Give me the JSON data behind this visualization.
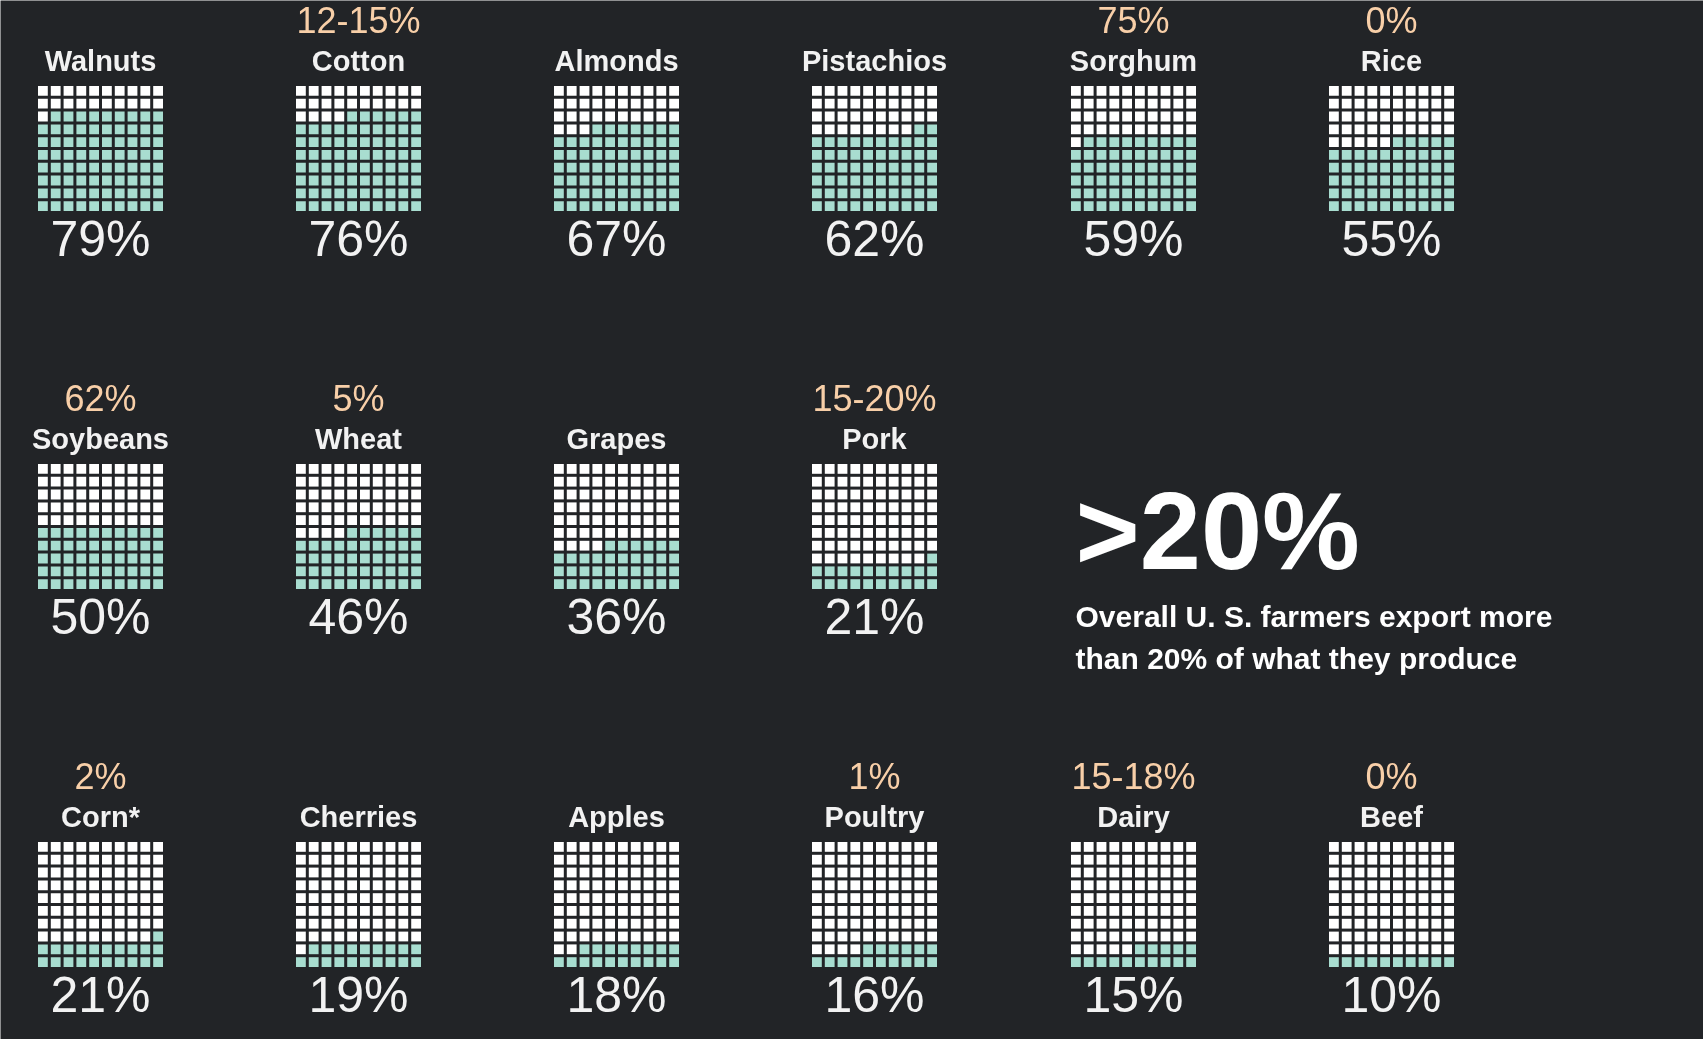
{
  "chart_data": {
    "type": "other",
    "categories": [
      "Walnuts",
      "Cotton",
      "Almonds",
      "Pistachios",
      "Sorghum",
      "Rice",
      "Soybeans",
      "Wheat",
      "Grapes",
      "Pork",
      "Corn*",
      "Cherries",
      "Apples",
      "Poultry",
      "Dairy",
      "Beef"
    ],
    "values": [
      79,
      76,
      67,
      62,
      59,
      55,
      50,
      46,
      36,
      21,
      21,
      19,
      18,
      16,
      15,
      10
    ],
    "value_labels": [
      "79%",
      "76%",
      "67%",
      "62%",
      "59%",
      "55%",
      "50%",
      "46%",
      "36%",
      "21%",
      "21%",
      "19%",
      "18%",
      "16%",
      "15%",
      "10%"
    ],
    "color": "#a8ddd0",
    "annotations": [
      {
        "text": "12-15%",
        "x": "Cotton"
      },
      {
        "text": "75%",
        "x": "Sorghum"
      },
      {
        "text": "0%",
        "x": "Rice"
      },
      {
        "text": "62%",
        "x": "Soybeans"
      },
      {
        "text": "5%",
        "x": "Wheat"
      },
      {
        "text": "15-20%",
        "x": "Pork"
      },
      {
        "text": "2%",
        "x": "Corn*"
      },
      {
        "text": "1%",
        "x": "Poultry"
      },
      {
        "text": "15-18%",
        "x": "Dairy"
      },
      {
        "text": "0%",
        "x": "Beef"
      },
      ">20%",
      "Overall  U. S. farmers export more than 20% of what they produce"
    ]
  }
}
